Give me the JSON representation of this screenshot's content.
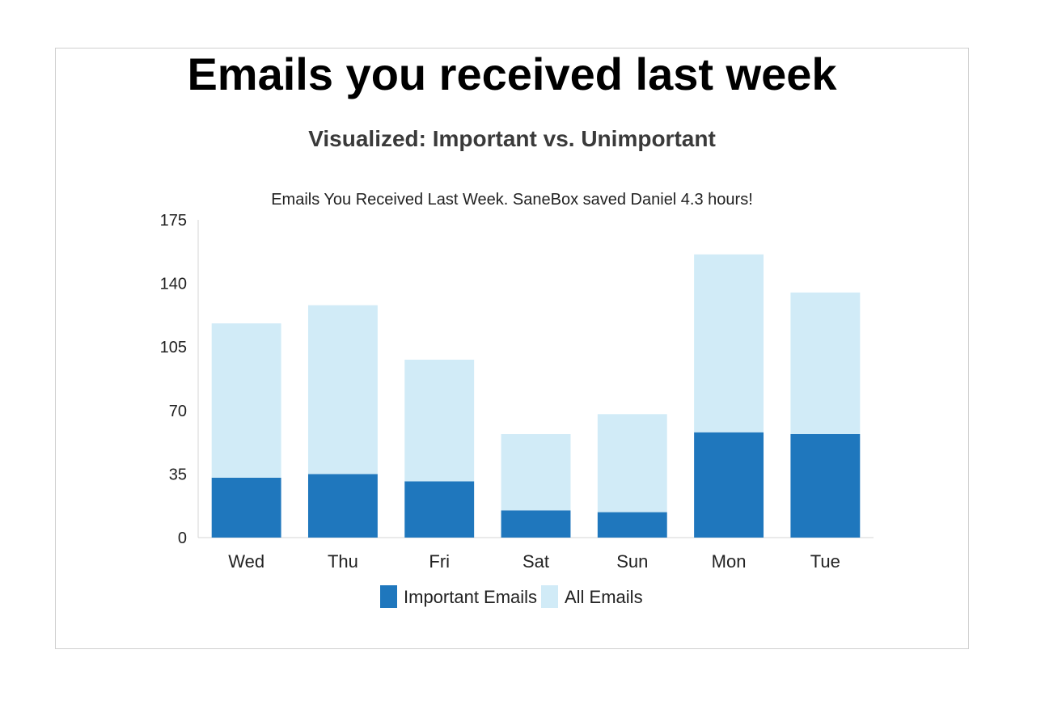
{
  "header": {
    "title": "Emails you received last week",
    "subtitle": "Visualized: Important vs. Unimportant"
  },
  "chart_data": {
    "type": "bar",
    "stacked": true,
    "title": "Emails You Received Last Week. SaneBox saved Daniel 4.3 hours!",
    "xlabel": "",
    "ylabel": "",
    "ylim": [
      0,
      175
    ],
    "yticks": [
      0,
      35,
      70,
      105,
      140,
      175
    ],
    "categories": [
      "Wed",
      "Thu",
      "Fri",
      "Sat",
      "Sun",
      "Mon",
      "Tue"
    ],
    "series": [
      {
        "name": "Important Emails",
        "color": "#1f77bd",
        "values": [
          33,
          35,
          31,
          15,
          14,
          58,
          57
        ]
      },
      {
        "name": "All Emails",
        "color": "#d1ebf7",
        "values": [
          85,
          93,
          67,
          42,
          54,
          98,
          78
        ]
      }
    ],
    "grid": false,
    "legend": "bottom-center"
  }
}
